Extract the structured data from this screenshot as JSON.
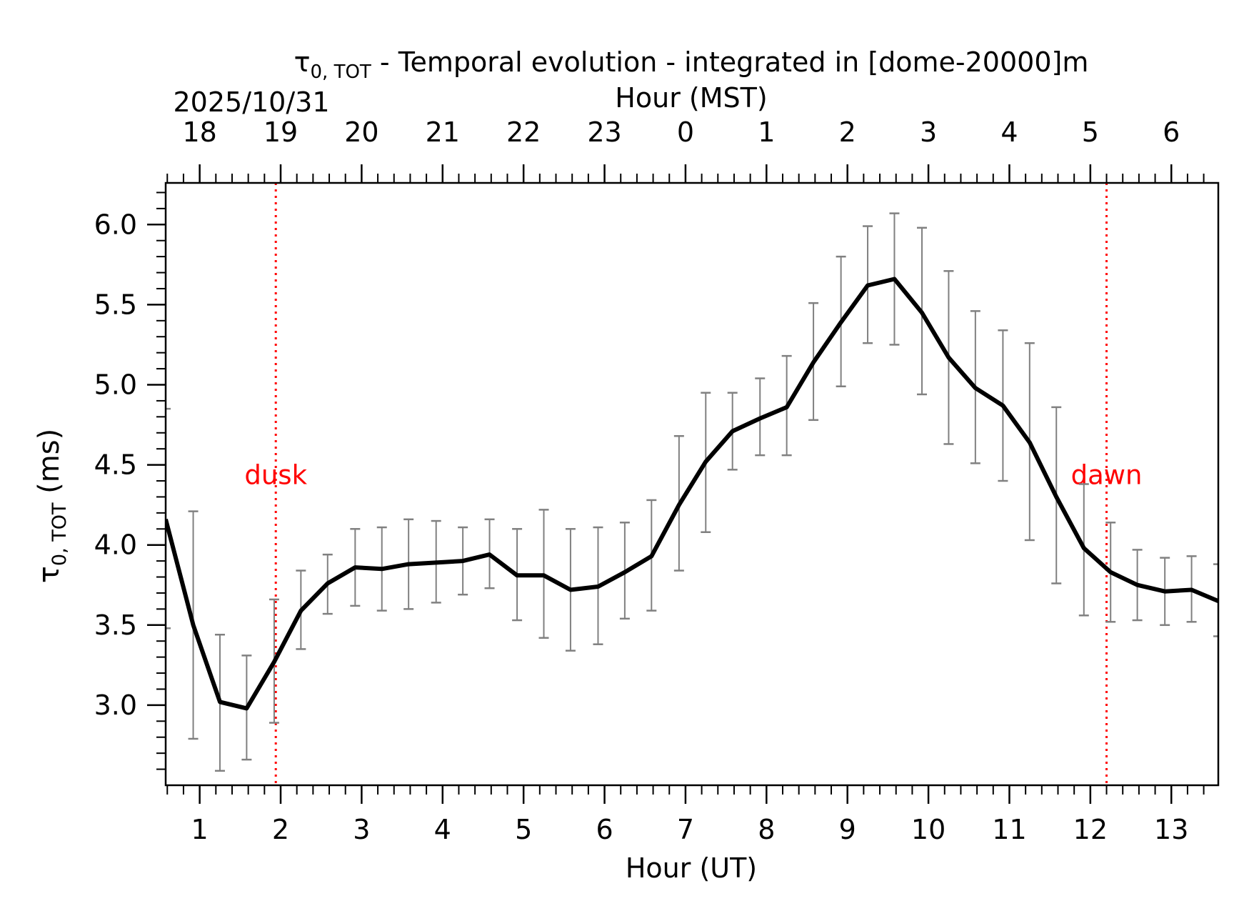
{
  "chart_data": {
    "type": "line",
    "title_main": "τ",
    "title_sub": "0, TOT",
    "title_rest": " - Temporal evolution - integrated in [dome-20000]m",
    "date_label": "2025/10/31",
    "top_xlabel": "Hour (MST)",
    "xlabel": "Hour (UT)",
    "ylabel_main": "τ",
    "ylabel_sub": "0, TOT",
    "ylabel_rest": " (ms)",
    "xlim": [
      0.58,
      13.58
    ],
    "ylim": [
      2.5,
      6.26
    ],
    "x_ticks": [
      1,
      2,
      3,
      4,
      5,
      6,
      7,
      8,
      9,
      10,
      11,
      12,
      13
    ],
    "x_tick_labels": [
      "1",
      "2",
      "3",
      "4",
      "5",
      "6",
      "7",
      "8",
      "9",
      "10",
      "11",
      "12",
      "13"
    ],
    "y_ticks": [
      3.0,
      3.5,
      4.0,
      4.5,
      5.0,
      5.5,
      6.0
    ],
    "y_tick_labels": [
      "3.0",
      "3.5",
      "4.0",
      "4.5",
      "5.0",
      "5.5",
      "6.0"
    ],
    "top_ticks_ut": [
      1,
      2,
      3,
      4,
      5,
      6,
      7,
      8,
      9,
      10,
      11,
      12,
      13
    ],
    "top_tick_labels": [
      "18",
      "19",
      "20",
      "21",
      "22",
      "23",
      "0",
      "1",
      "2",
      "3",
      "4",
      "5",
      "6"
    ],
    "series": [
      {
        "name": "tau0_tot",
        "color": "#000000",
        "x": [
          0.58,
          0.92,
          1.25,
          1.58,
          1.92,
          2.25,
          2.58,
          2.92,
          3.25,
          3.58,
          3.92,
          4.25,
          4.58,
          4.92,
          5.25,
          5.58,
          5.92,
          6.25,
          6.58,
          6.92,
          7.25,
          7.58,
          7.92,
          8.25,
          8.58,
          8.92,
          9.25,
          9.58,
          9.92,
          10.25,
          10.58,
          10.92,
          11.25,
          11.58,
          11.92,
          12.25,
          12.58,
          12.92,
          13.25,
          13.58
        ],
        "y": [
          4.16,
          3.5,
          3.02,
          2.98,
          3.27,
          3.59,
          3.76,
          3.86,
          3.85,
          3.88,
          3.89,
          3.9,
          3.94,
          3.81,
          3.81,
          3.72,
          3.74,
          3.83,
          3.93,
          4.25,
          4.52,
          4.71,
          4.79,
          4.86,
          5.14,
          5.39,
          5.62,
          5.66,
          5.45,
          5.17,
          4.98,
          4.87,
          4.64,
          4.3,
          3.98,
          3.83,
          3.75,
          3.71,
          3.72,
          3.65
        ],
        "err_low": [
          3.48,
          2.79,
          2.59,
          2.66,
          2.89,
          3.35,
          3.57,
          3.62,
          3.59,
          3.6,
          3.64,
          3.69,
          3.73,
          3.53,
          3.42,
          3.34,
          3.38,
          3.54,
          3.59,
          3.84,
          4.08,
          4.47,
          4.56,
          4.56,
          4.78,
          4.99,
          5.26,
          5.25,
          4.94,
          4.63,
          4.51,
          4.4,
          4.03,
          3.76,
          3.56,
          3.52,
          3.53,
          3.5,
          3.52,
          3.43
        ],
        "err_high": [
          4.85,
          4.21,
          3.44,
          3.31,
          3.66,
          3.84,
          3.94,
          4.1,
          4.11,
          4.16,
          4.15,
          4.11,
          4.16,
          4.1,
          4.22,
          4.1,
          4.11,
          4.14,
          4.28,
          4.68,
          4.95,
          4.95,
          5.04,
          5.18,
          5.51,
          5.8,
          5.99,
          6.07,
          5.98,
          5.71,
          5.46,
          5.34,
          5.26,
          4.86,
          4.38,
          4.14,
          3.97,
          3.92,
          3.93,
          3.88
        ]
      }
    ],
    "annotations": [
      {
        "label": "dusk",
        "x": 1.94,
        "color": "#ff0000"
      },
      {
        "label": "dawn",
        "x": 12.2,
        "color": "#ff0000"
      }
    ],
    "errorbar_color": "#808080",
    "grid": false
  }
}
